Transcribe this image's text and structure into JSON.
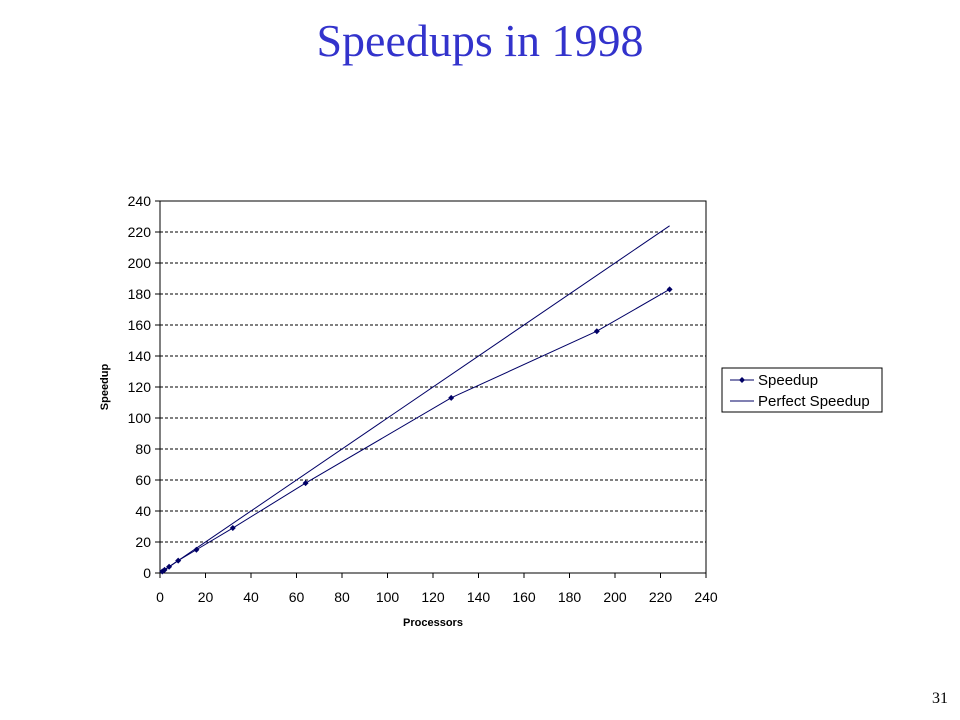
{
  "slide": {
    "title": "Speedups in 1998",
    "page_number": "31"
  },
  "chart_data": {
    "type": "line",
    "xlabel": "Processors",
    "ylabel": "Speedup",
    "xlim": [
      0,
      240
    ],
    "ylim": [
      0,
      240
    ],
    "x_ticks": [
      0,
      20,
      40,
      60,
      80,
      100,
      120,
      140,
      160,
      180,
      200,
      220,
      240
    ],
    "y_ticks": [
      0,
      20,
      40,
      60,
      80,
      100,
      120,
      140,
      160,
      180,
      200,
      220,
      240
    ],
    "grid": "horizontal dashed",
    "legend_position": "right",
    "series": [
      {
        "name": "Speedup",
        "marker": "diamond",
        "color": "#000066",
        "x": [
          1,
          2,
          4,
          8,
          16,
          32,
          64,
          128,
          192,
          224
        ],
        "y": [
          1,
          2,
          4,
          8,
          15,
          29,
          58,
          113,
          156,
          183
        ]
      },
      {
        "name": "Perfect Speedup",
        "marker": "none",
        "color": "#000066",
        "x": [
          1,
          224
        ],
        "y": [
          1,
          224
        ]
      }
    ]
  }
}
